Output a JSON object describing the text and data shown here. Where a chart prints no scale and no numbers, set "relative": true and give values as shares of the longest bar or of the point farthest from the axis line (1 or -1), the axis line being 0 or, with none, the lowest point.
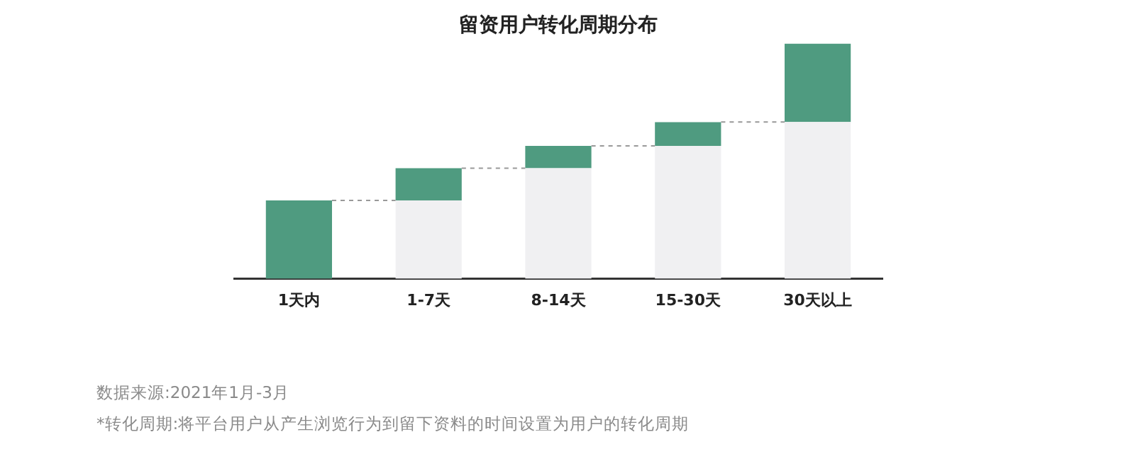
{
  "chart_data": {
    "type": "bar",
    "title": "留资用户转化周期分布",
    "categories": [
      "1天内",
      "1-7天",
      "8-14天",
      "15-30天",
      "30天以上"
    ],
    "stacked": true,
    "relative": true,
    "grid": false,
    "legend": false,
    "series": [
      {
        "color": "#f0f0f2",
        "values": [
          0,
          0.333,
          0.47,
          0.565,
          0.667
        ]
      },
      {
        "color": "#4f9b80",
        "values": [
          0.333,
          0.137,
          0.095,
          0.101,
          0.333
        ]
      }
    ],
    "ref_lines": [
      {
        "axis": "y",
        "value": 0.333,
        "color": "#999999",
        "line_style": "dashed"
      },
      {
        "axis": "y",
        "value": 0.47,
        "color": "#999999",
        "line_style": "dashed"
      },
      {
        "axis": "y",
        "value": 0.565,
        "color": "#999999",
        "line_style": "dashed"
      },
      {
        "axis": "y",
        "value": 0.667,
        "color": "#999999",
        "line_style": "dashed"
      }
    ],
    "annotations": [
      "数据来源:2021年1月-3月",
      "*转化周期:将平台用户从产生浏览行为到留下资料的时间设置为用户的转化周期"
    ]
  }
}
